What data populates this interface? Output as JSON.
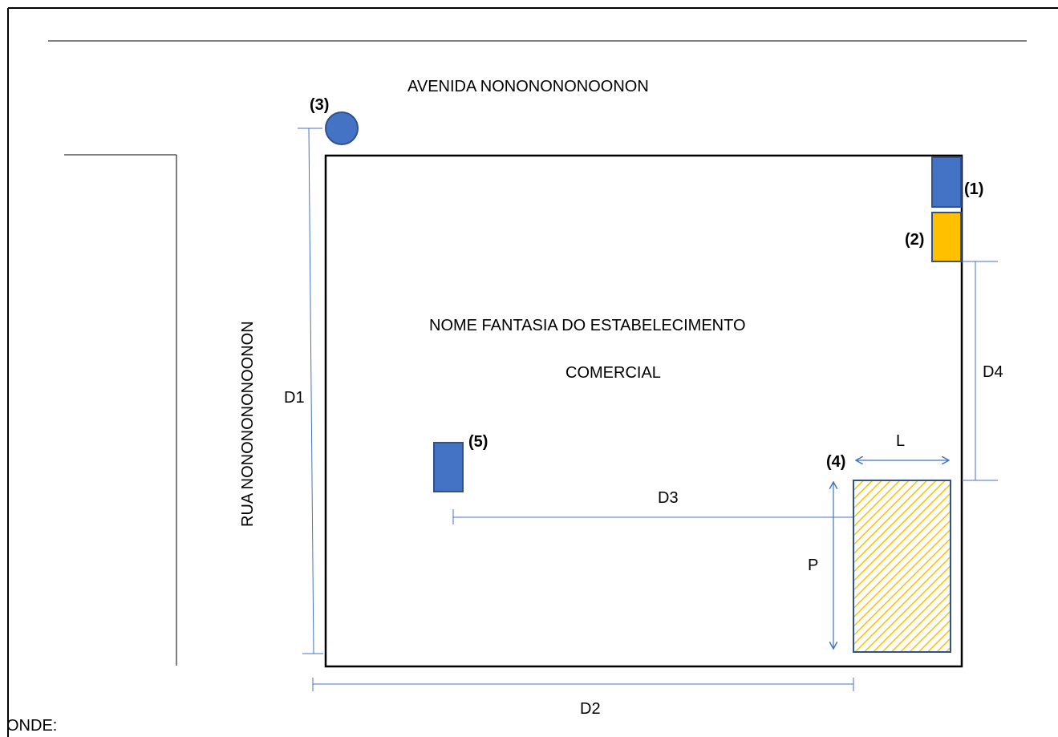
{
  "texts": {
    "avenue": "AVENIDA NONONONONOONON",
    "street": "RUA NONONONONOONON",
    "establishment_line1": "NOME FANTASIA DO ESTABELECIMENTO",
    "establishment_line2": "COMERCIAL",
    "footer": "ONDE:"
  },
  "dimensions": {
    "d1": "D1",
    "d2": "D2",
    "d3": "D3",
    "d4": "D4",
    "l": "L",
    "p": "P"
  },
  "markers": {
    "m1": "(1)",
    "m2": "(2)",
    "m3": "(3)",
    "m4": "(4)",
    "m5": "(5)"
  },
  "colors": {
    "blue_fill": "#4472C4",
    "blue_stroke": "#2F528F",
    "orange_fill": "#FFC000",
    "hatch": "#FFC000",
    "dim_line": "#4472C4"
  }
}
